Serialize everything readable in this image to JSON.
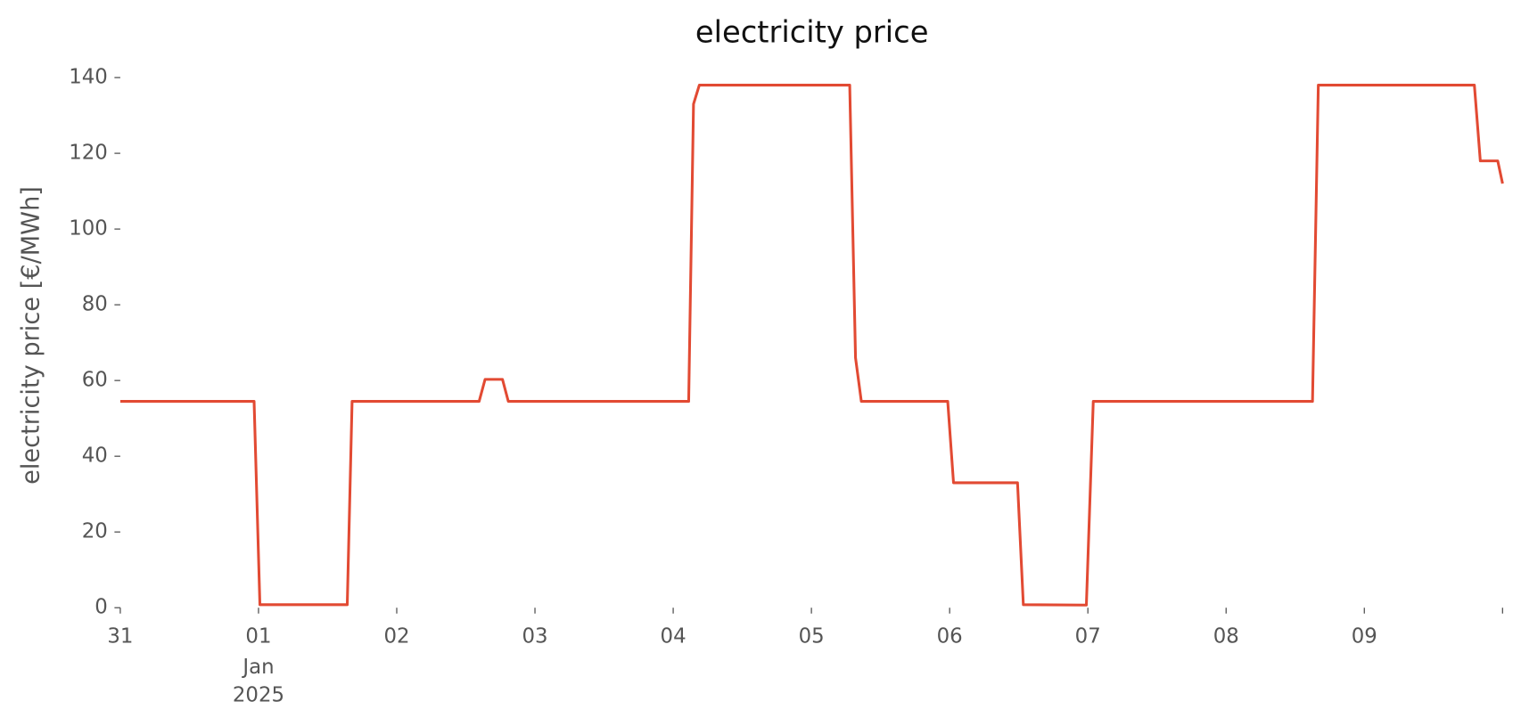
{
  "chart_data": {
    "type": "line",
    "title": "electricity price",
    "ylabel": "electricity price [€/MWh]",
    "x": [
      0,
      0.968,
      1.01,
      1.642,
      1.677,
      2.596,
      2.639,
      2.765,
      2.807,
      4.112,
      4.147,
      4.189,
      5.277,
      5.319,
      5.361,
      5.986,
      6.028,
      6.491,
      6.533,
      6.989,
      7.039,
      8.625,
      8.667,
      9.796,
      9.839,
      9.965,
      10
    ],
    "series": [
      {
        "name": "electricity price",
        "color": "#e24a33",
        "values": [
          54.5,
          54.5,
          0.8,
          0.8,
          54.5,
          54.5,
          60.3,
          60.3,
          54.5,
          54.5,
          133,
          138,
          138,
          66,
          54.5,
          54.5,
          33,
          33,
          0.8,
          0.7,
          54.5,
          54.5,
          138,
          138,
          118,
          118,
          112
        ]
      }
    ],
    "xlim": [
      0,
      10
    ],
    "xticks": [
      {
        "value": 0,
        "label": "31"
      },
      {
        "value": 1,
        "label": "01"
      },
      {
        "value": 2,
        "label": "02"
      },
      {
        "value": 3,
        "label": "03"
      },
      {
        "value": 4,
        "label": "04"
      },
      {
        "value": 5,
        "label": "05"
      },
      {
        "value": 6,
        "label": "06"
      },
      {
        "value": 7,
        "label": "07"
      },
      {
        "value": 8,
        "label": "08"
      },
      {
        "value": 9,
        "label": "09"
      },
      {
        "value": 10,
        "label": null
      }
    ],
    "x_period_label": {
      "value": 1,
      "lines": [
        "Jan",
        "2025"
      ]
    },
    "ylim": [
      0,
      140
    ],
    "yticks": [
      0,
      20,
      40,
      60,
      80,
      100,
      120,
      140
    ],
    "grid": false
  }
}
